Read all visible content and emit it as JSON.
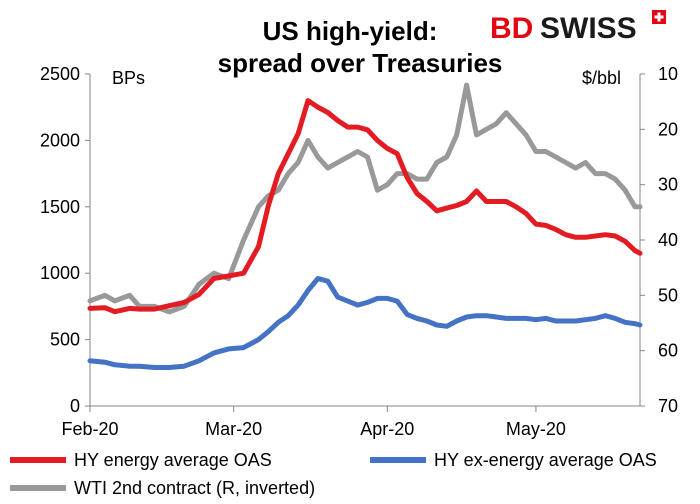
{
  "brand": {
    "logo_text_1": "BD",
    "logo_text_2": "SWISS",
    "logo_color_1": "#e30613",
    "logo_color_2": "#1a1a1a",
    "badge_icon": "swiss-cross-icon"
  },
  "chart_data": {
    "type": "line",
    "title": [
      "US high-yield:",
      "spread over Treasuries"
    ],
    "left_axis_label": "BPs",
    "right_axis_label": "$/bbl",
    "x_ticks": [
      "Feb-20",
      "Mar-20",
      "Apr-20",
      "May-20"
    ],
    "x_tick_days": [
      0,
      29,
      60,
      90
    ],
    "x_range_days": [
      0,
      111
    ],
    "y_left": {
      "min": 0,
      "max": 2500,
      "step": 500,
      "ticks": [
        "0",
        "500",
        "1000",
        "1500",
        "2000",
        "2500"
      ]
    },
    "y_right": {
      "min": 10,
      "max": 70,
      "step": 10,
      "inverted": true,
      "ticks": [
        "10",
        "20",
        "30",
        "40",
        "50",
        "60",
        "70"
      ]
    },
    "grid": false,
    "legend_position": "bottom",
    "series": [
      {
        "name": "HY energy average OAS",
        "axis": "left",
        "color": "#e31b23",
        "x_days": [
          0,
          3,
          5,
          8,
          10,
          13,
          16,
          19,
          22,
          25,
          28,
          31,
          34,
          36,
          38,
          40,
          42,
          44,
          46,
          48,
          50,
          52,
          54,
          56,
          58,
          60,
          62,
          64,
          66,
          68,
          70,
          72,
          74,
          76,
          78,
          80,
          82,
          84,
          86,
          88,
          90,
          92,
          94,
          96,
          98,
          100,
          102,
          104,
          106,
          108,
          110,
          111
        ],
        "values": [
          735,
          740,
          710,
          735,
          730,
          730,
          755,
          780,
          840,
          960,
          980,
          1000,
          1200,
          1510,
          1750,
          1900,
          2050,
          2300,
          2250,
          2210,
          2150,
          2100,
          2100,
          2080,
          2000,
          1940,
          1900,
          1720,
          1600,
          1540,
          1470,
          1490,
          1510,
          1540,
          1620,
          1540,
          1540,
          1540,
          1500,
          1450,
          1370,
          1360,
          1330,
          1290,
          1270,
          1270,
          1280,
          1290,
          1280,
          1240,
          1170,
          1150
        ]
      },
      {
        "name": "HY ex-energy average OAS",
        "axis": "left",
        "color": "#4472c4",
        "x_days": [
          0,
          3,
          5,
          8,
          10,
          13,
          16,
          19,
          22,
          25,
          28,
          31,
          34,
          36,
          38,
          40,
          42,
          44,
          46,
          48,
          50,
          52,
          54,
          56,
          58,
          60,
          62,
          64,
          66,
          68,
          70,
          72,
          74,
          76,
          78,
          80,
          82,
          84,
          86,
          88,
          90,
          92,
          94,
          96,
          98,
          100,
          102,
          104,
          106,
          108,
          110,
          111
        ],
        "values": [
          340,
          330,
          310,
          300,
          300,
          290,
          290,
          300,
          340,
          400,
          430,
          440,
          500,
          560,
          630,
          680,
          760,
          870,
          960,
          940,
          820,
          790,
          760,
          780,
          810,
          810,
          790,
          690,
          660,
          640,
          610,
          600,
          640,
          670,
          680,
          680,
          670,
          660,
          660,
          660,
          650,
          660,
          640,
          640,
          640,
          650,
          660,
          680,
          660,
          630,
          620,
          610
        ]
      },
      {
        "name": "WTI 2nd contract (R, inverted)",
        "axis": "right",
        "color": "#999999",
        "x_days": [
          0,
          3,
          5,
          8,
          10,
          13,
          16,
          19,
          22,
          25,
          28,
          31,
          34,
          36,
          38,
          40,
          42,
          44,
          46,
          48,
          50,
          52,
          54,
          56,
          58,
          60,
          62,
          64,
          66,
          68,
          70,
          72,
          74,
          76,
          78,
          80,
          82,
          84,
          86,
          88,
          90,
          92,
          94,
          96,
          98,
          100,
          102,
          104,
          106,
          108,
          110,
          111
        ],
        "values": [
          51,
          50,
          51,
          50,
          52,
          52,
          53,
          52,
          48,
          46,
          47,
          40,
          34,
          32,
          31,
          28,
          26,
          22,
          25,
          27,
          26,
          25,
          24,
          25,
          31,
          30,
          28,
          28,
          29,
          29,
          26,
          25,
          21,
          12,
          21,
          20,
          19,
          17,
          19,
          21,
          24,
          24,
          25,
          26,
          27,
          26,
          28,
          28,
          29,
          31,
          34,
          34
        ]
      }
    ]
  }
}
